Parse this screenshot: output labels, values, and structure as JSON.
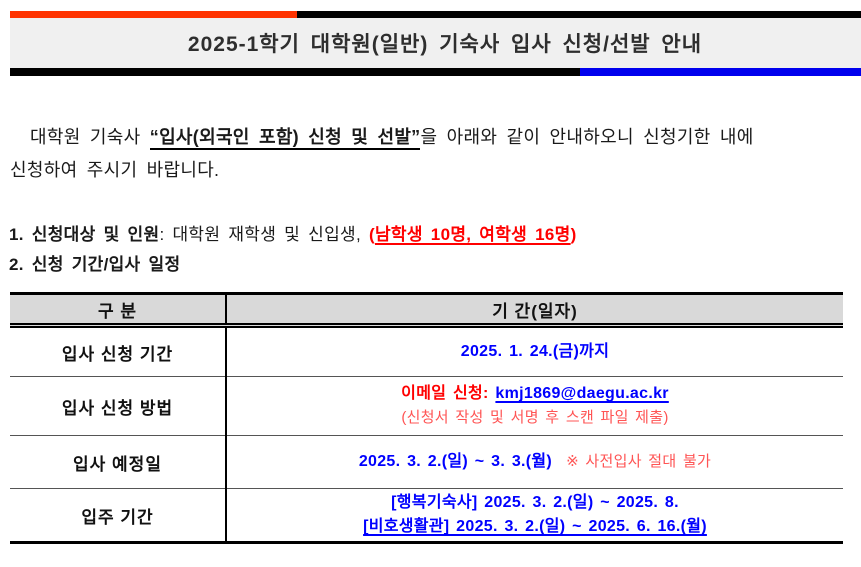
{
  "colors": {
    "bar_orange": "#ff3300",
    "bar_black": "#000000",
    "bar_blue": "#0000ee",
    "title_banner_bg": "#f0f0f0",
    "table_header_bg": "#d9d9d9",
    "text_blue": "#0000ff",
    "text_red": "#ff0000",
    "text_light_red": "#ff5454"
  },
  "header": {
    "title": "2025-1학기 대학원(일반) 기숙사 입사 신청/선발 안내"
  },
  "intro": {
    "line1_prefix": "대학원 기숙사 ",
    "line1_emphasis": "“입사(외국인 포함) 신청 및 선발”",
    "line1_suffix": "을 아래와 같이 안내하오니 신청기한 내에",
    "line2": "신청하여 주시기 바랍니다."
  },
  "sections": {
    "item1": {
      "heading": "1. 신청대상 및 인원",
      "body": ": 대학원 재학생 및 신입생, ",
      "note_open": "(",
      "note_underlined": "남학생 10명, 여학생 16명",
      "note_close": ")"
    },
    "item2": {
      "heading": "2. 신청 기간/입사 일정"
    }
  },
  "table": {
    "col_headers": [
      "구 분",
      "기 간(일자)"
    ],
    "rows": {
      "apply_period": {
        "label": "입사 신청 기간",
        "value": "2025. 1. 24.(금)까지"
      },
      "apply_method": {
        "label": "입사 신청 방법",
        "line1_red": "이메일 신청: ",
        "line1_email": "kmj1869@daegu.ac.kr",
        "line2": "(신청서 작성 및 서명 후 스캔 파일 제출)"
      },
      "movein_date": {
        "label": "입사 예정일",
        "value": "2025. 3. 2.(일) ~ 3. 3.(월)",
        "note": "※ 사전입사 절대 불가"
      },
      "residence_period": {
        "label": "입주 기간",
        "line1": "[행복기숙사] 2025. 3. 2.(일) ~ 2025. 8.",
        "line2": "[비호생활관] 2025. 3. 2.(일) ~ 2025. 6. 16.(월)"
      }
    }
  }
}
